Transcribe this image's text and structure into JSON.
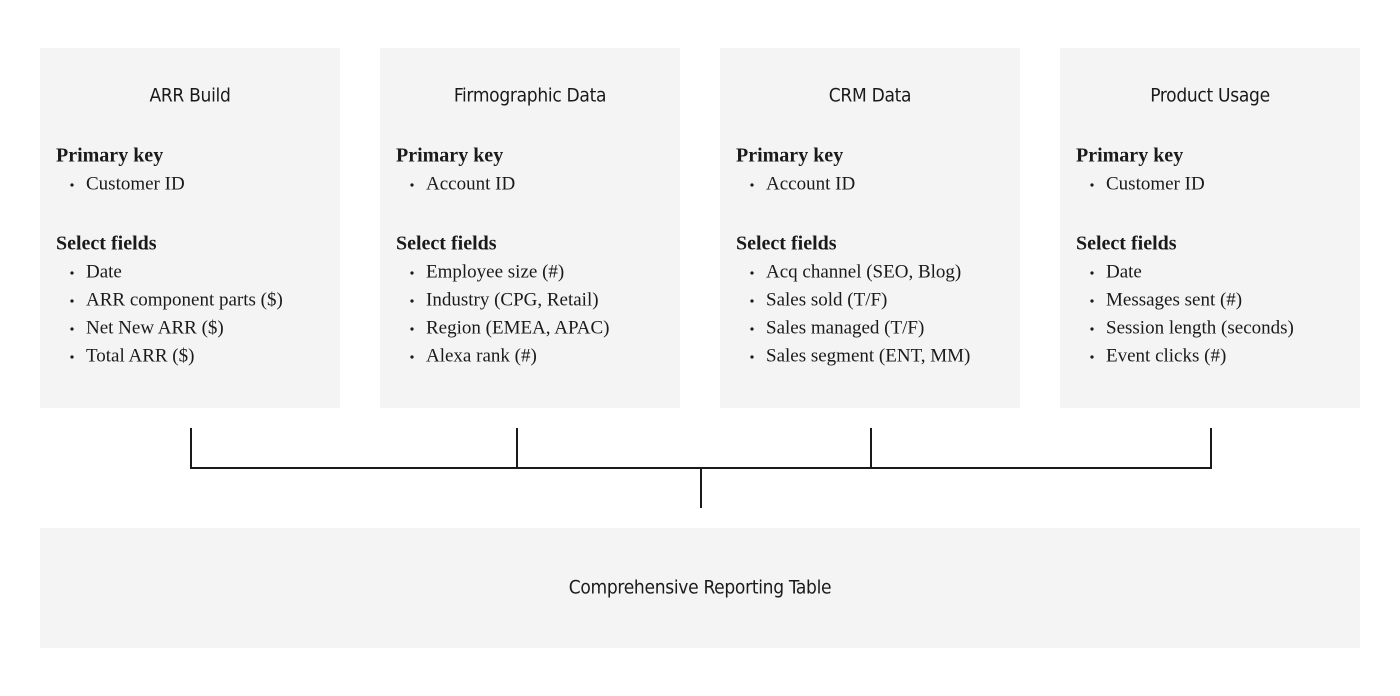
{
  "sources": [
    {
      "title": "ARR Build",
      "primary_key_label": "Primary key",
      "primary_key": [
        "Customer ID"
      ],
      "fields_label": "Select fields",
      "fields": [
        "Date",
        "ARR component parts ($)",
        "Net New ARR ($)",
        "Total ARR ($)"
      ]
    },
    {
      "title": "Firmographic Data",
      "primary_key_label": "Primary key",
      "primary_key": [
        "Account ID"
      ],
      "fields_label": "Select fields",
      "fields": [
        "Employee size (#)",
        "Industry (CPG, Retail)",
        "Region (EMEA, APAC)",
        "Alexa rank (#)"
      ]
    },
    {
      "title": "CRM Data",
      "primary_key_label": "Primary key",
      "primary_key": [
        "Account ID"
      ],
      "fields_label": "Select fields",
      "fields": [
        "Acq channel (SEO, Blog)",
        "Sales sold (T/F)",
        "Sales managed (T/F)",
        "Sales segment (ENT, MM)"
      ]
    },
    {
      "title": "Product Usage",
      "primary_key_label": "Primary key",
      "primary_key": [
        "Customer ID"
      ],
      "fields_label": "Select fields",
      "fields": [
        "Date",
        "Messages sent (#)",
        "Session length (seconds)",
        "Event clicks (#)"
      ]
    }
  ],
  "target": {
    "title": "Comprehensive Reporting Table"
  }
}
